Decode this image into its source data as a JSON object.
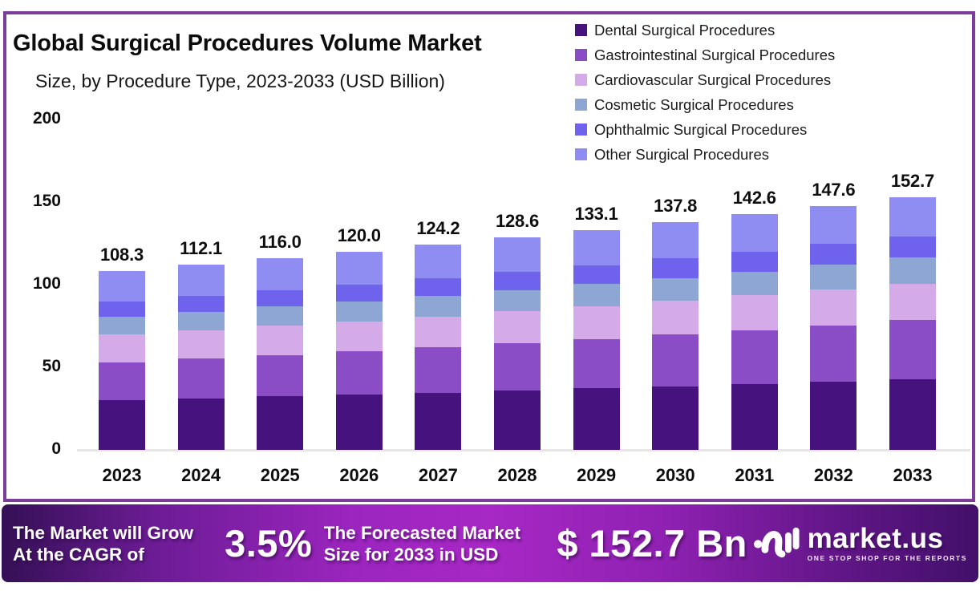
{
  "frame": {
    "title": "Global Surgical Procedures Volume Market",
    "subtitle": "Size, by Procedure Type, 2023-2033 (USD Billion)"
  },
  "chart_data": {
    "type": "bar",
    "stacked": true,
    "categories": [
      "2023",
      "2024",
      "2025",
      "2026",
      "2027",
      "2028",
      "2029",
      "2030",
      "2031",
      "2032",
      "2033"
    ],
    "totals": [
      108.3,
      112.1,
      116.0,
      120.0,
      124.2,
      128.6,
      133.1,
      137.8,
      142.6,
      147.6,
      152.7
    ],
    "series": [
      {
        "name": "Dental Surgical Procedures",
        "color": "#45127e",
        "values": [
          30.2,
          31.3,
          32.4,
          33.5,
          34.7,
          35.9,
          37.2,
          38.5,
          39.9,
          41.3,
          42.8
        ]
      },
      {
        "name": "Gastrointestinal Surgical Procedures",
        "color": "#8b4dc6",
        "values": [
          22.9,
          23.9,
          25.0,
          26.1,
          27.3,
          28.6,
          29.8,
          31.2,
          32.6,
          34.1,
          35.6
        ]
      },
      {
        "name": "Cardiovascular Surgical Procedures",
        "color": "#d4abe8",
        "values": [
          16.7,
          17.2,
          17.7,
          18.2,
          18.7,
          19.3,
          19.9,
          20.4,
          21.0,
          21.7,
          22.3
        ]
      },
      {
        "name": "Cosmetic Surgical Procedures",
        "color": "#8ea6d4",
        "values": [
          10.8,
          11.2,
          11.6,
          12.1,
          12.5,
          13.0,
          13.5,
          14.0,
          14.5,
          15.0,
          15.6
        ]
      },
      {
        "name": "Ophthalmic Surgical Procedures",
        "color": "#6f63ed",
        "values": [
          9.2,
          9.5,
          9.9,
          10.2,
          10.6,
          10.9,
          11.3,
          11.7,
          12.1,
          12.5,
          13.0
        ]
      },
      {
        "name": "Other Surgical Procedures",
        "color": "#8f8df1",
        "values": [
          18.5,
          19.0,
          19.4,
          19.9,
          20.4,
          20.9,
          21.4,
          22.0,
          22.5,
          23.0,
          23.4
        ]
      }
    ],
    "title": "Global Surgical Procedures Volume Market Size, by Procedure Type, 2023-2033 (USD Billion)",
    "xlabel": "",
    "ylabel": "",
    "ylim": [
      0,
      200
    ],
    "yticks": [
      0,
      50,
      100,
      150,
      200
    ],
    "grid": false,
    "legend_position": "top-right",
    "value_labels": "total above each bar, one decimal"
  },
  "banner": {
    "cagr_label_line1": "The Market will Grow",
    "cagr_label_line2": "At the CAGR of",
    "cagr_value": "3.5%",
    "forecast_label_line1": "The Forecasted Market",
    "forecast_label_line2": "Size for 2033 in USD",
    "forecast_value": "$ 152.7 Bn",
    "brand": {
      "name": "market.us",
      "tagline": "ONE STOP SHOP FOR THE REPORTS"
    }
  },
  "colors": {
    "frame_border": "#7b3d99",
    "axis_line": "#e7e5e6",
    "text": "#0e0e0e",
    "banner_gradient_left": "#341055",
    "banner_gradient_mid": "#a728c5",
    "banner_gradient_right": "#42106a"
  }
}
